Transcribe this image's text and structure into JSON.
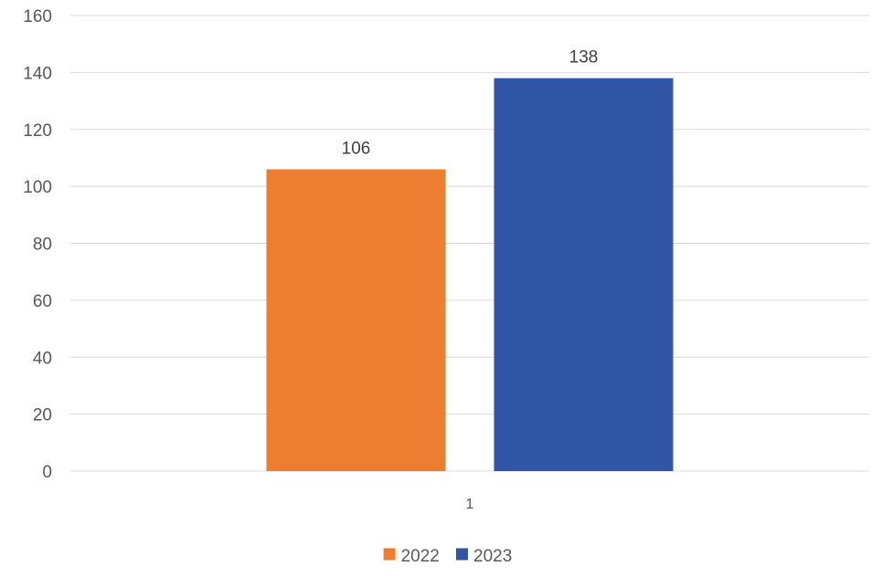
{
  "chart_data": {
    "type": "bar",
    "categories": [
      "1"
    ],
    "series": [
      {
        "name": "2022",
        "values": [
          106
        ],
        "color": "#ED7D31"
      },
      {
        "name": "2023",
        "values": [
          138
        ],
        "color": "#2F55A4"
      }
    ],
    "ylim": [
      0,
      160
    ],
    "yticks": [
      0,
      20,
      40,
      60,
      80,
      100,
      120,
      140,
      160
    ],
    "grid": true,
    "legend_position": "bottom",
    "data_labels": true
  }
}
